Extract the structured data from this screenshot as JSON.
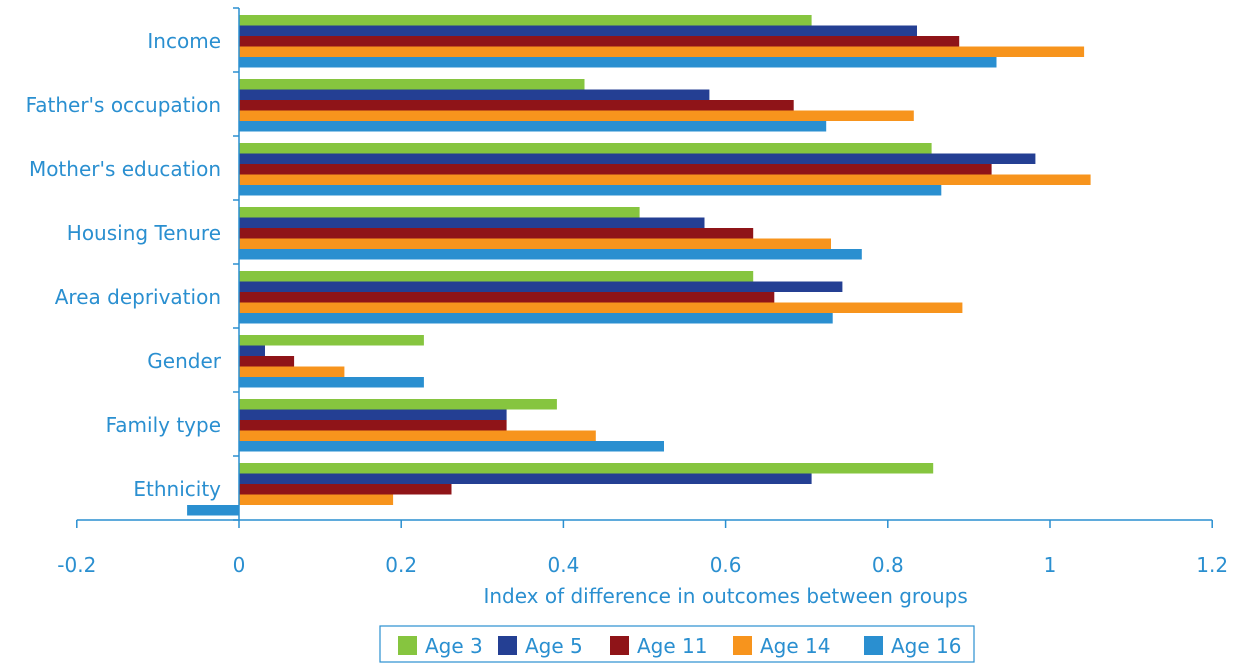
{
  "colors": {
    "axis": "#2a8fd0",
    "text": "#2a8fd0",
    "Age 3": "#86c53f",
    "Age 5": "#243f93",
    "Age 11": "#8f1418",
    "Age 14": "#f7941d",
    "Age 16": "#2a8fd0"
  },
  "chart_data": {
    "type": "bar",
    "orientation": "horizontal",
    "title": "",
    "xlabel": "Index of difference in outcomes between groups",
    "ylabel": "",
    "xlim": [
      -0.2,
      1.2
    ],
    "x_ticks": [
      -0.2,
      0,
      0.2,
      0.4,
      0.6,
      0.8,
      1,
      1.2
    ],
    "x_tick_labels": [
      "-0.2",
      "0",
      "0.2",
      "0.4",
      "0.6",
      "0.8",
      "1",
      "1.2"
    ],
    "grid": false,
    "legend_position": "bottom",
    "categories": [
      "Income",
      "Father's occupation",
      "Mother's education",
      "Housing Tenure",
      "Area deprivation",
      "Gender",
      "Family type",
      "Ethnicity"
    ],
    "series": [
      {
        "name": "Age 3",
        "values": [
          0.706,
          0.426,
          0.854,
          0.494,
          0.634,
          0.228,
          0.392,
          0.856
        ]
      },
      {
        "name": "Age 5",
        "values": [
          0.836,
          0.58,
          0.982,
          0.574,
          0.744,
          0.032,
          0.33,
          0.706
        ]
      },
      {
        "name": "Age 11",
        "values": [
          0.888,
          0.684,
          0.928,
          0.634,
          0.66,
          0.068,
          0.33,
          0.262
        ]
      },
      {
        "name": "Age 14",
        "values": [
          1.042,
          0.832,
          1.05,
          0.73,
          0.892,
          0.13,
          0.44,
          0.19
        ]
      },
      {
        "name": "Age 16",
        "values": [
          0.934,
          0.724,
          0.866,
          0.768,
          0.732,
          0.228,
          0.524,
          -0.064
        ]
      }
    ]
  }
}
